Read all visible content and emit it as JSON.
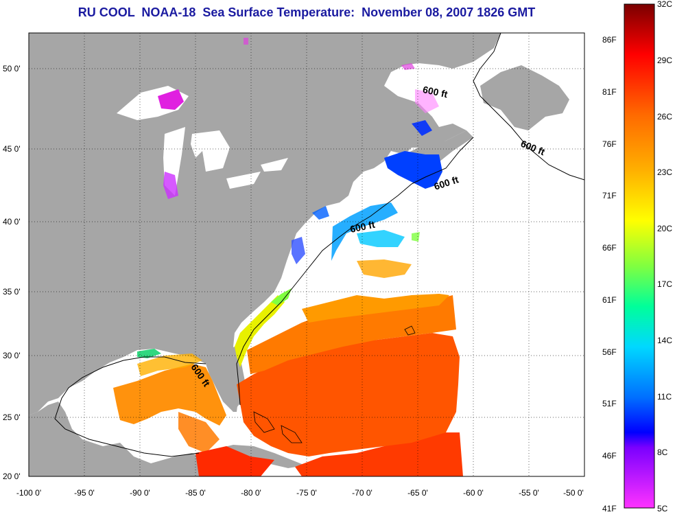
{
  "title": "RU COOL  NOAA-18  Sea Surface Temperature:  November 08, 2007 1826 GMT",
  "map": {
    "lon_ticks": [
      "-100 0'",
      "-95 0'",
      "-90 0'",
      "-85 0'",
      "-80 0'",
      "-75 0'",
      "-70 0'",
      "-65 0'",
      "-60 0'",
      "-55 0'",
      "-50 0'"
    ],
    "lat_ticks": [
      "50 0'",
      "45 0'",
      "40 0'",
      "35 0'",
      "30 0'",
      "25 0'",
      "20 0'"
    ],
    "contour_labels": [
      "600 ft",
      "600 ft",
      "600 ft",
      "600 ft",
      "600 ft"
    ],
    "colors": {
      "land": "#a6a6a6",
      "ocean_clear": "#ffffff"
    }
  },
  "colorbar": {
    "celsius_labels": [
      "32C",
      "29C",
      "26C",
      "23C",
      "20C",
      "17C",
      "14C",
      "11C",
      "8C",
      "5C"
    ],
    "fahrenheit_labels": [
      "86F",
      "81F",
      "76F",
      "71F",
      "66F",
      "61F",
      "56F",
      "51F",
      "46F",
      "41F"
    ],
    "gradient_colors": [
      "#7a0000",
      "#ff0000",
      "#ff6a00",
      "#ffb000",
      "#ffff00",
      "#80ff40",
      "#00ff9a",
      "#00d8ff",
      "#0070ff",
      "#0000ff",
      "#7a00ff",
      "#ff33ff"
    ]
  }
}
